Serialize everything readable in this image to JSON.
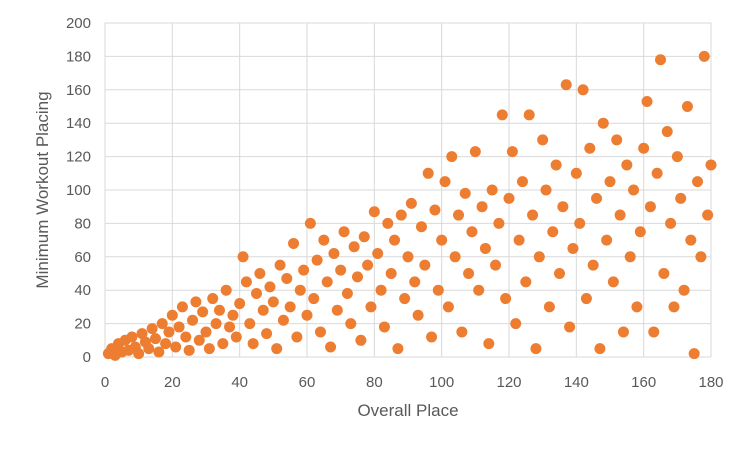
{
  "chart_data": {
    "type": "scatter",
    "x_label": "Overall Place",
    "y_label": "Minimum Workout Placing",
    "color": "#ED7D31",
    "grid": true,
    "xlim": [
      0,
      180
    ],
    "xticks": [
      0,
      20,
      40,
      60,
      80,
      100,
      120,
      140,
      160,
      180
    ],
    "ylim": [
      0,
      200
    ],
    "yticks": [
      0,
      20,
      40,
      60,
      80,
      100,
      120,
      140,
      160,
      180,
      200
    ],
    "x": [
      1,
      2,
      3,
      4,
      5,
      6,
      7,
      8,
      9,
      10,
      11,
      12,
      13,
      14,
      15,
      16,
      17,
      18,
      19,
      20,
      21,
      22,
      23,
      24,
      25,
      26,
      27,
      28,
      29,
      30,
      31,
      32,
      33,
      34,
      35,
      36,
      37,
      38,
      39,
      40,
      41,
      42,
      43,
      44,
      45,
      46,
      47,
      48,
      49,
      50,
      51,
      52,
      53,
      54,
      55,
      56,
      57,
      58,
      59,
      60,
      61,
      62,
      63,
      64,
      65,
      66,
      67,
      68,
      69,
      70,
      71,
      72,
      73,
      74,
      75,
      76,
      77,
      78,
      79,
      80,
      81,
      82,
      83,
      84,
      85,
      86,
      87,
      88,
      89,
      90,
      91,
      92,
      93,
      94,
      95,
      96,
      97,
      98,
      99,
      100,
      101,
      102,
      103,
      104,
      105,
      106,
      107,
      108,
      109,
      110,
      111,
      112,
      113,
      114,
      115,
      116,
      117,
      118,
      119,
      120,
      121,
      122,
      123,
      124,
      125,
      126,
      127,
      128,
      129,
      130,
      131,
      132,
      133,
      134,
      135,
      136,
      137,
      138,
      139,
      140,
      141,
      142,
      143,
      144,
      145,
      146,
      147,
      148,
      149,
      150,
      151,
      152,
      153,
      154,
      155,
      156,
      157,
      158,
      159,
      160,
      161,
      162,
      163,
      164,
      165,
      166,
      167,
      168,
      169,
      170,
      171,
      172,
      173,
      174,
      175,
      176,
      177,
      178,
      179,
      180
    ],
    "y": [
      2,
      5,
      1,
      8,
      3,
      10,
      4,
      12,
      6,
      2,
      14,
      9,
      5,
      17,
      11,
      3,
      20,
      8,
      15,
      25,
      6,
      18,
      30,
      12,
      4,
      22,
      33,
      10,
      27,
      15,
      5,
      35,
      20,
      28,
      8,
      40,
      18,
      25,
      12,
      32,
      60,
      45,
      20,
      8,
      38,
      50,
      28,
      14,
      42,
      33,
      5,
      55,
      22,
      47,
      30,
      68,
      12,
      40,
      52,
      25,
      80,
      35,
      58,
      15,
      70,
      45,
      6,
      62,
      28,
      52,
      75,
      38,
      20,
      66,
      48,
      10,
      72,
      55,
      30,
      87,
      62,
      40,
      18,
      80,
      50,
      70,
      5,
      85,
      35,
      60,
      92,
      45,
      25,
      78,
      55,
      110,
      12,
      88,
      40,
      70,
      105,
      30,
      120,
      60,
      85,
      15,
      98,
      50,
      75,
      123,
      40,
      90,
      65,
      8,
      100,
      55,
      80,
      145,
      35,
      95,
      123,
      20,
      70,
      105,
      45,
      145,
      85,
      5,
      60,
      130,
      100,
      30,
      75,
      115,
      50,
      90,
      163,
      18,
      65,
      110,
      80,
      160,
      35,
      125,
      55,
      95,
      5,
      140,
      70,
      105,
      45,
      130,
      85,
      15,
      115,
      60,
      100,
      30,
      75,
      125,
      153,
      90,
      15,
      110,
      178,
      50,
      135,
      80,
      30,
      120,
      95,
      40,
      150,
      70,
      2,
      105,
      60,
      180,
      85,
      115
    ]
  }
}
